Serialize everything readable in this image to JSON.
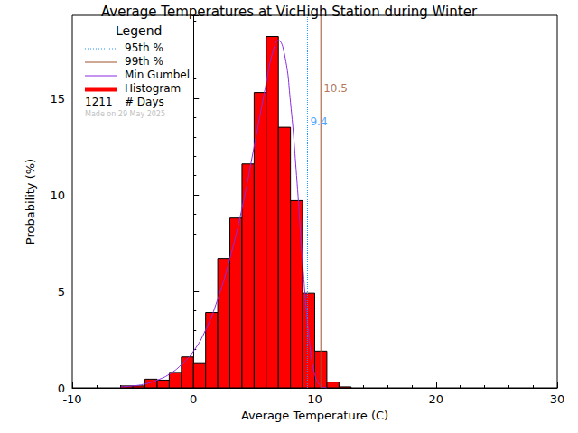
{
  "chart_data": {
    "type": "histogram",
    "title": "Average Temperatures at VicHigh Station during Winter",
    "x_label": "Average Temperature (C)",
    "y_label": "Probability (%)",
    "name": "Histogram",
    "color": "#ff0000",
    "bins": [
      -6,
      -5,
      -4,
      -3,
      -2,
      -1,
      0,
      1,
      2,
      3,
      4,
      5,
      6,
      7,
      8,
      9,
      10,
      11,
      12,
      13
    ],
    "values": [
      0.1,
      0.1,
      0.45,
      0.4,
      0.8,
      1.6,
      1.3,
      3.9,
      6.7,
      8.8,
      11.6,
      15.3,
      18.2,
      13.5,
      9.7,
      4.9,
      1.9,
      0.3,
      0.05
    ],
    "xlim": [
      -10,
      30
    ],
    "xticks": [
      -10,
      0,
      10,
      20,
      30
    ],
    "ylim": [
      0,
      19.3
    ],
    "yticks": [
      0,
      5,
      10,
      15
    ],
    "legend": "top-left",
    "legend_title": "Legend",
    "series": [
      {
        "name": "95th %",
        "type": "vline",
        "value": 9.4,
        "color": "#1e90ff",
        "line_style": "dotted"
      },
      {
        "name": "99th %",
        "type": "vline",
        "value": 10.5,
        "color": "#a0522d",
        "line_style": "solid"
      },
      {
        "name": "Min Gumbel",
        "type": "line",
        "color": "#8a2be2",
        "line_style": "solid",
        "x": [
          -6,
          -5,
          -4,
          -3,
          -2,
          -1,
          0,
          1,
          2,
          3,
          4,
          5,
          6,
          6.5,
          7,
          7.5,
          8,
          8.5,
          9,
          9.5,
          10,
          10.5,
          11
        ],
        "values": [
          0.05,
          0.1,
          0.2,
          0.4,
          0.7,
          1.2,
          1.9,
          3.0,
          4.6,
          6.7,
          9.3,
          12.5,
          15.8,
          17.3,
          18.0,
          17.3,
          14.8,
          11.0,
          6.5,
          2.8,
          0.7,
          0.1,
          0.0
        ]
      }
    ],
    "count_label": {
      "value": 1211,
      "label": "# Days"
    },
    "made_on": "Made on 29 May 2025"
  }
}
